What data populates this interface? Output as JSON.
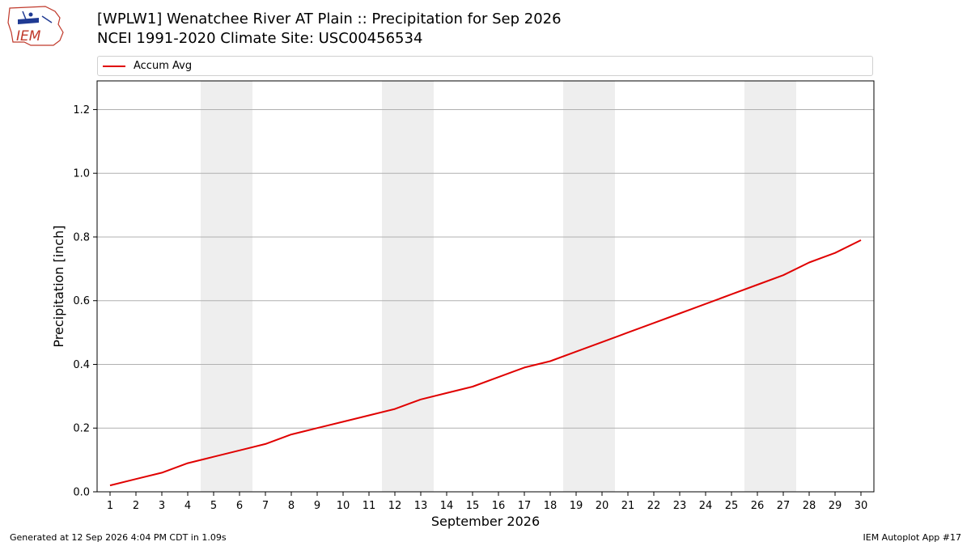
{
  "header": {
    "title": "[WPLW1] Wenatchee River  AT Plain :: Precipitation for Sep 2026",
    "subtitle": "NCEI 1991-2020 Climate Site: USC00456534",
    "logo_text": "IEM"
  },
  "footer": {
    "left": "Generated at 12 Sep 2026 4:04 PM CDT in 1.09s",
    "right": "IEM Autoplot App #17"
  },
  "colors": {
    "series": "#e00000",
    "weekend_band": "#eeeeee",
    "grid": "#b0b0b0"
  },
  "chart_data": {
    "type": "line",
    "xlabel": "September 2026",
    "ylabel": "Precipitation [inch]",
    "xlim": [
      0.5,
      30.5
    ],
    "ylim": [
      0,
      1.29
    ],
    "yticks": [
      0.0,
      0.2,
      0.4,
      0.6,
      0.8,
      1.0,
      1.2
    ],
    "ytick_labels": [
      "0.0",
      "0.2",
      "0.4",
      "0.6",
      "0.8",
      "1.0",
      "1.2"
    ],
    "xticks": [
      1,
      2,
      3,
      4,
      5,
      6,
      7,
      8,
      9,
      10,
      11,
      12,
      13,
      14,
      15,
      16,
      17,
      18,
      19,
      20,
      21,
      22,
      23,
      24,
      25,
      26,
      27,
      28,
      29,
      30
    ],
    "xtick_labels": [
      "1",
      "2",
      "3",
      "4",
      "5",
      "6",
      "7",
      "8",
      "9",
      "10",
      "11",
      "12",
      "13",
      "14",
      "15",
      "16",
      "17",
      "18",
      "19",
      "20",
      "21",
      "22",
      "23",
      "24",
      "25",
      "26",
      "27",
      "28",
      "29",
      "30"
    ],
    "grid": "horizontal",
    "legend_position": "top",
    "weekend_bands": [
      [
        4.5,
        6.5
      ],
      [
        11.5,
        13.5
      ],
      [
        18.5,
        20.5
      ],
      [
        25.5,
        27.5
      ]
    ],
    "series": [
      {
        "name": "Accum Avg",
        "x": [
          1,
          2,
          3,
          4,
          5,
          6,
          7,
          8,
          9,
          10,
          11,
          12,
          13,
          14,
          15,
          16,
          17,
          18,
          19,
          20,
          21,
          22,
          23,
          24,
          25,
          26,
          27,
          28,
          29,
          30
        ],
        "values": [
          0.02,
          0.04,
          0.06,
          0.09,
          0.11,
          0.13,
          0.15,
          0.18,
          0.2,
          0.22,
          0.24,
          0.26,
          0.29,
          0.31,
          0.33,
          0.36,
          0.39,
          0.41,
          0.44,
          0.47,
          0.5,
          0.53,
          0.56,
          0.59,
          0.62,
          0.65,
          0.68,
          0.72,
          0.75,
          0.79
        ]
      }
    ]
  }
}
